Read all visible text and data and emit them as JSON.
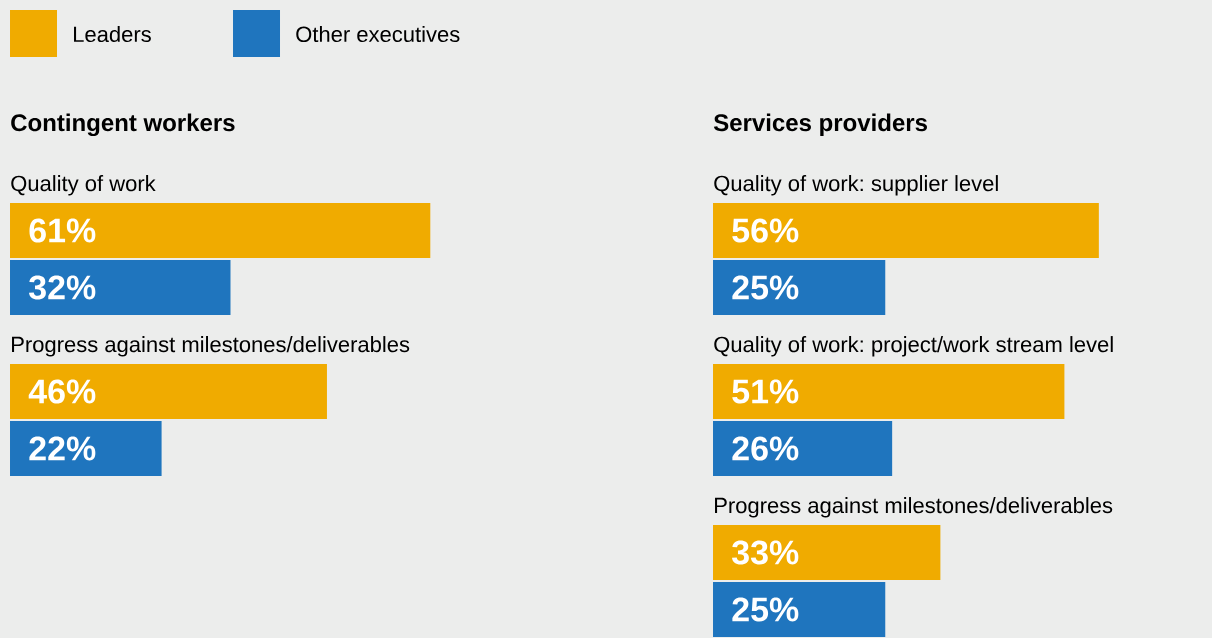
{
  "chart_data": [
    {
      "type": "bar",
      "orientation": "horizontal",
      "title": "Contingent workers",
      "legend": "top left",
      "categories": [
        "Quality of work",
        "Progress against milestones/deliverables"
      ],
      "series": [
        {
          "name": "Leaders",
          "color": "#f0ab00",
          "values": [
            61,
            46
          ],
          "value_labels": [
            "61%",
            "46%"
          ]
        },
        {
          "name": "Other executives",
          "color": "#1f75be",
          "values": [
            32,
            22
          ],
          "value_labels": [
            "32%",
            "22%"
          ]
        }
      ]
    },
    {
      "type": "bar",
      "orientation": "horizontal",
      "title": "Services providers",
      "categories": [
        "Quality of work: supplier level",
        "Quality of work: project/work stream level",
        "Progress against milestones/deliverables"
      ],
      "series": [
        {
          "color": "#f0ab00",
          "values": [
            56,
            51,
            33
          ],
          "value_labels": [
            "56%",
            "51%",
            "33%"
          ]
        },
        {
          "color": "#1f75be",
          "values": [
            25,
            26,
            25
          ],
          "value_labels": [
            "25%",
            "26%",
            "25%"
          ]
        }
      ]
    }
  ]
}
